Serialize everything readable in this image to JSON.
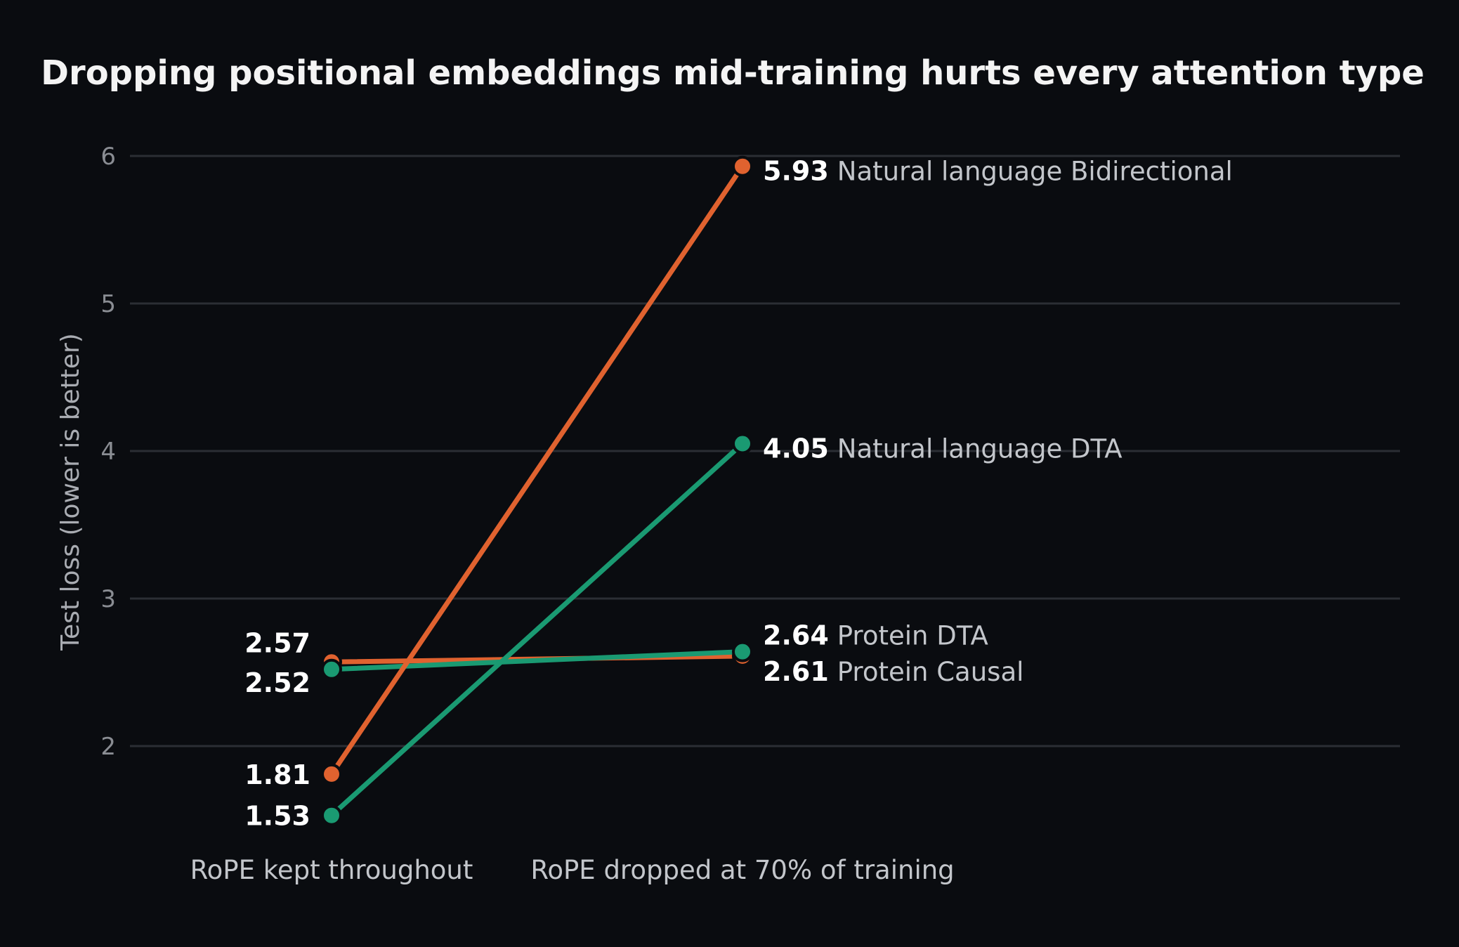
{
  "chart_data": {
    "type": "line",
    "title": "Dropping positional embeddings mid-training hurts every attention type",
    "ylabel": "Test loss (lower is better)",
    "categories": [
      "RoPE kept throughout",
      "RoPE dropped at 70% of training"
    ],
    "ylim": [
      1.35,
      6.1
    ],
    "yticks": [
      "2",
      "3",
      "4",
      "5",
      "6"
    ],
    "grid": true,
    "series": [
      {
        "name": "Natural language Bidirectional",
        "color": "#e0622f",
        "values": [
          1.81,
          5.93
        ],
        "labels": [
          "1.81",
          "5.93"
        ]
      },
      {
        "name": "Natural language DTA",
        "color": "#1a9a72",
        "values": [
          1.53,
          4.05
        ],
        "labels": [
          "1.53",
          "4.05"
        ]
      },
      {
        "name": "Protein DTA",
        "color": "#1a9a72",
        "values": [
          2.52,
          2.64
        ],
        "labels": [
          "2.52",
          "2.64"
        ]
      },
      {
        "name": "Protein Causal",
        "color": "#e0622f",
        "values": [
          2.57,
          2.61
        ],
        "labels": [
          "2.57",
          "2.61"
        ]
      }
    ]
  }
}
